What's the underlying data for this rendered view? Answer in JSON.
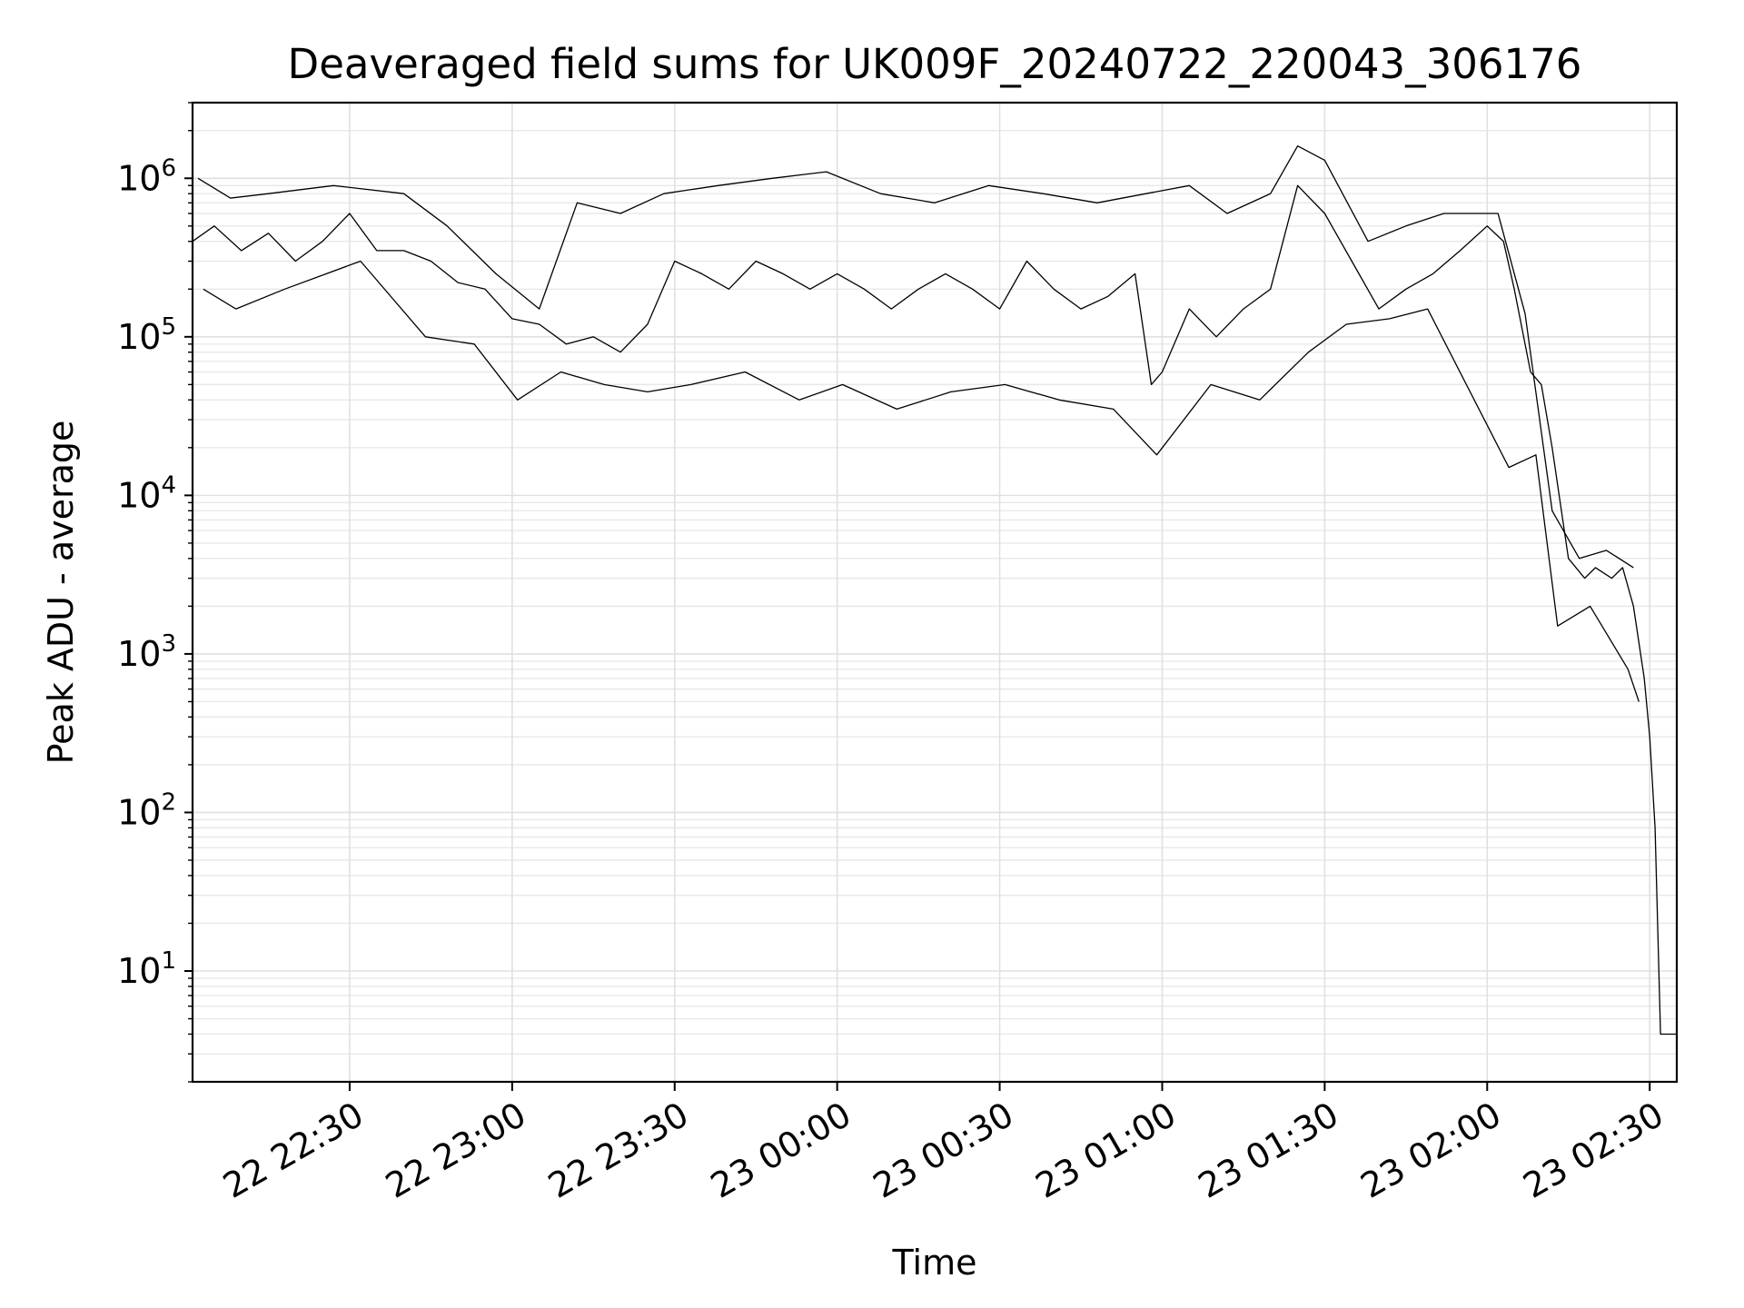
{
  "chart_data": {
    "type": "line",
    "title": "Deaveraged field sums for UK009F_20240722_220043_306176",
    "xlabel": "Time",
    "ylabel": "Peak ADU - average",
    "yscale": "log",
    "ylim": [
      2,
      3000000
    ],
    "xlim": [
      "2024-07-22 22:01:00",
      "2024-07-23 02:35:00"
    ],
    "grid": true,
    "x_ticks": [
      {
        "value": "2024-07-22 22:30:00",
        "label": "22 22:30"
      },
      {
        "value": "2024-07-22 23:00:00",
        "label": "22 23:00"
      },
      {
        "value": "2024-07-22 23:30:00",
        "label": "22 23:30"
      },
      {
        "value": "2024-07-23 00:00:00",
        "label": "23 00:00"
      },
      {
        "value": "2024-07-23 00:30:00",
        "label": "23 00:30"
      },
      {
        "value": "2024-07-23 01:00:00",
        "label": "23 01:00"
      },
      {
        "value": "2024-07-23 01:30:00",
        "label": "23 01:30"
      },
      {
        "value": "2024-07-23 02:00:00",
        "label": "23 02:00"
      },
      {
        "value": "2024-07-23 02:30:00",
        "label": "23 02:30"
      }
    ],
    "y_ticks": [
      {
        "value": 10,
        "base": "10",
        "exp": "1"
      },
      {
        "value": 100,
        "base": "10",
        "exp": "2"
      },
      {
        "value": 1000,
        "base": "10",
        "exp": "3"
      },
      {
        "value": 10000,
        "base": "10",
        "exp": "4"
      },
      {
        "value": 100000,
        "base": "10",
        "exp": "5"
      },
      {
        "value": 1000000,
        "base": "10",
        "exp": "6"
      }
    ],
    "series": [
      {
        "color": "#000000",
        "x": [
          "2024-07-22 22:01:00",
          "2024-07-22 22:05:00",
          "2024-07-22 22:10:00",
          "2024-07-22 22:15:00",
          "2024-07-22 22:20:00",
          "2024-07-22 22:25:00",
          "2024-07-22 22:30:00",
          "2024-07-22 22:35:00",
          "2024-07-22 22:40:00",
          "2024-07-22 22:45:00",
          "2024-07-22 22:50:00",
          "2024-07-22 22:55:00",
          "2024-07-22 23:00:00",
          "2024-07-22 23:05:00",
          "2024-07-22 23:10:00",
          "2024-07-22 23:15:00",
          "2024-07-22 23:20:00",
          "2024-07-22 23:25:00",
          "2024-07-22 23:30:00",
          "2024-07-22 23:35:00",
          "2024-07-22 23:40:00",
          "2024-07-22 23:45:00",
          "2024-07-22 23:50:00",
          "2024-07-22 23:55:00",
          "2024-07-23 00:00:00",
          "2024-07-23 00:05:00",
          "2024-07-23 00:10:00",
          "2024-07-23 00:15:00",
          "2024-07-23 00:20:00",
          "2024-07-23 00:25:00",
          "2024-07-23 00:30:00",
          "2024-07-23 00:35:00",
          "2024-07-23 00:40:00",
          "2024-07-23 00:45:00",
          "2024-07-23 00:50:00",
          "2024-07-23 00:55:00",
          "2024-07-23 00:58:00",
          "2024-07-23 01:00:00",
          "2024-07-23 01:05:00",
          "2024-07-23 01:10:00",
          "2024-07-23 01:15:00",
          "2024-07-23 01:20:00",
          "2024-07-23 01:25:00",
          "2024-07-23 01:30:00",
          "2024-07-23 01:35:00",
          "2024-07-23 01:40:00",
          "2024-07-23 01:45:00",
          "2024-07-23 01:50:00",
          "2024-07-23 01:55:00",
          "2024-07-23 02:00:00",
          "2024-07-23 02:03:00",
          "2024-07-23 02:05:00",
          "2024-07-23 02:08:00",
          "2024-07-23 02:10:00",
          "2024-07-23 02:12:00",
          "2024-07-23 02:15:00",
          "2024-07-23 02:18:00",
          "2024-07-23 02:20:00",
          "2024-07-23 02:23:00",
          "2024-07-23 02:25:00",
          "2024-07-23 02:27:00",
          "2024-07-23 02:29:00",
          "2024-07-23 02:30:00",
          "2024-07-23 02:31:00",
          "2024-07-23 02:32:00",
          "2024-07-23 02:33:00",
          "2024-07-23 02:35:00"
        ],
        "values": [
          400000,
          500000,
          350000,
          450000,
          300000,
          400000,
          600000,
          350000,
          350000,
          300000,
          220000,
          200000,
          130000,
          120000,
          90000,
          100000,
          80000,
          120000,
          300000,
          250000,
          200000,
          300000,
          250000,
          200000,
          250000,
          200000,
          150000,
          200000,
          250000,
          200000,
          150000,
          300000,
          200000,
          150000,
          180000,
          250000,
          50000,
          60000,
          150000,
          100000,
          150000,
          200000,
          900000,
          600000,
          300000,
          150000,
          200000,
          250000,
          350000,
          500000,
          400000,
          200000,
          60000,
          50000,
          20000,
          4000,
          3000,
          3500,
          3000,
          3500,
          2000,
          700,
          300,
          80,
          4,
          4,
          4
        ]
      },
      {
        "color": "#000000",
        "x": [
          "2024-07-22 22:02:00",
          "2024-07-22 22:08:00",
          "2024-07-22 22:15:00",
          "2024-07-22 22:27:00",
          "2024-07-22 22:40:00",
          "2024-07-22 22:48:00",
          "2024-07-22 22:57:00",
          "2024-07-22 23:05:00",
          "2024-07-22 23:12:00",
          "2024-07-22 23:20:00",
          "2024-07-22 23:28:00",
          "2024-07-22 23:38:00",
          "2024-07-22 23:48:00",
          "2024-07-22 23:58:00",
          "2024-07-23 00:08:00",
          "2024-07-23 00:18:00",
          "2024-07-23 00:28:00",
          "2024-07-23 00:38:00",
          "2024-07-23 00:48:00",
          "2024-07-23 00:57:00",
          "2024-07-23 01:05:00",
          "2024-07-23 01:12:00",
          "2024-07-23 01:20:00",
          "2024-07-23 01:25:00",
          "2024-07-23 01:30:00",
          "2024-07-23 01:38:00",
          "2024-07-23 01:45:00",
          "2024-07-23 01:52:00",
          "2024-07-23 02:02:00",
          "2024-07-23 02:07:00",
          "2024-07-23 02:12:00",
          "2024-07-23 02:17:00",
          "2024-07-23 02:22:00",
          "2024-07-23 02:27:00"
        ],
        "values": [
          1000000,
          750000,
          800000,
          900000,
          800000,
          500000,
          250000,
          150000,
          700000,
          600000,
          800000,
          900000,
          1000000,
          1100000,
          800000,
          700000,
          900000,
          800000,
          700000,
          800000,
          900000,
          600000,
          800000,
          1600000,
          1300000,
          400000,
          500000,
          600000,
          600000,
          140000,
          8000,
          4000,
          4500,
          3500
        ]
      },
      {
        "color": "#000000",
        "x": [
          "2024-07-22 22:03:00",
          "2024-07-22 22:09:00",
          "2024-07-22 22:18:00",
          "2024-07-22 22:32:00",
          "2024-07-22 22:44:00",
          "2024-07-22 22:53:00",
          "2024-07-22 23:01:00",
          "2024-07-22 23:09:00",
          "2024-07-22 23:17:00",
          "2024-07-22 23:25:00",
          "2024-07-22 23:33:00",
          "2024-07-22 23:43:00",
          "2024-07-22 23:53:00",
          "2024-07-23 00:01:00",
          "2024-07-23 00:11:00",
          "2024-07-23 00:21:00",
          "2024-07-23 00:31:00",
          "2024-07-23 00:41:00",
          "2024-07-23 00:51:00",
          "2024-07-23 00:59:00",
          "2024-07-23 01:09:00",
          "2024-07-23 01:18:00",
          "2024-07-23 01:27:00",
          "2024-07-23 01:34:00",
          "2024-07-23 01:42:00",
          "2024-07-23 01:49:00",
          "2024-07-23 02:04:00",
          "2024-07-23 02:09:00",
          "2024-07-23 02:13:00",
          "2024-07-23 02:19:00",
          "2024-07-23 02:26:00",
          "2024-07-23 02:28:00"
        ],
        "values": [
          200000,
          150000,
          200000,
          300000,
          100000,
          90000,
          40000,
          60000,
          50000,
          45000,
          50000,
          60000,
          40000,
          50000,
          35000,
          45000,
          50000,
          40000,
          35000,
          18000,
          50000,
          40000,
          80000,
          120000,
          130000,
          150000,
          15000,
          18000,
          1500,
          2000,
          800,
          500
        ]
      }
    ]
  }
}
